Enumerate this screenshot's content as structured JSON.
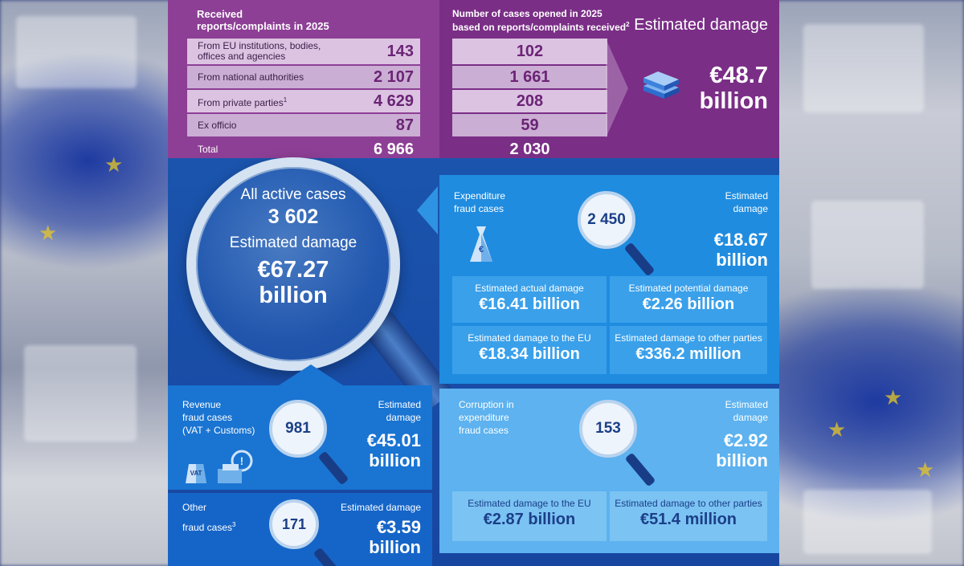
{
  "received": {
    "header": [
      "Received",
      "reports/complaints in 2025"
    ],
    "rows": [
      {
        "label": [
          "From EU institutions, bodies,",
          "offices and agencies"
        ],
        "value": "143"
      },
      {
        "label": [
          "From national authorities"
        ],
        "value": "2 107"
      },
      {
        "label": [
          "From private parties"
        ],
        "sup": "1",
        "value": "4 629"
      },
      {
        "label": [
          "Ex officio"
        ],
        "value": "87"
      }
    ],
    "total_label": "Total",
    "total_value": "6 966"
  },
  "opened": {
    "header": [
      "Number of cases opened in 2025",
      "based on reports/complaints received"
    ],
    "header_sup": "2",
    "values": [
      "102",
      "1 661",
      "208",
      "59"
    ],
    "total": "2 030"
  },
  "top_damage": {
    "label": "Estimated damage",
    "value_line1": "€48.7",
    "value_line2": "billion"
  },
  "all_cases": {
    "label": "All active cases",
    "count": "3 602",
    "damage_label": "Estimated damage",
    "damage_line1": "€67.27",
    "damage_line2": "billion"
  },
  "expenditure": {
    "label": [
      "Expenditure",
      "fraud cases"
    ],
    "count": "2 450",
    "damage_label": [
      "Estimated",
      "damage"
    ],
    "damage": [
      "€18.67",
      "billion"
    ],
    "boxes": [
      {
        "label": "Estimated actual damage",
        "value": "€16.41 billion"
      },
      {
        "label": "Estimated potential damage",
        "value": "€2.26 billion"
      },
      {
        "label": "Estimated damage to the EU",
        "value": "€18.34 billion"
      },
      {
        "label": "Estimated damage to other parties",
        "value": "€336.2 million"
      }
    ]
  },
  "revenue": {
    "label": [
      "Revenue",
      "fraud cases",
      "(VAT + Customs)"
    ],
    "count": "981",
    "damage_label": [
      "Estimated",
      "damage"
    ],
    "damage": [
      "€45.01",
      "billion"
    ],
    "vat_icon_text": "VAT"
  },
  "other": {
    "label": [
      "Other",
      "fraud cases"
    ],
    "sup": "3",
    "count": "171",
    "damage_label": "Estimated damage",
    "damage": [
      "€3.59",
      "billion"
    ]
  },
  "corruption": {
    "label": [
      "Corruption in",
      "expenditure",
      "fraud cases"
    ],
    "count": "153",
    "damage_label": [
      "Estimated",
      "damage"
    ],
    "damage": [
      "€2.92",
      "billion"
    ],
    "boxes": [
      {
        "label": "Estimated damage to the EU",
        "value": "€2.87 billion"
      },
      {
        "label": "Estimated damage to other parties",
        "value": "€51.4 million"
      }
    ]
  },
  "colors": {
    "purple": "#8d3f95",
    "blue": "#1c5ab2",
    "light_blue": "#5db2ef"
  }
}
